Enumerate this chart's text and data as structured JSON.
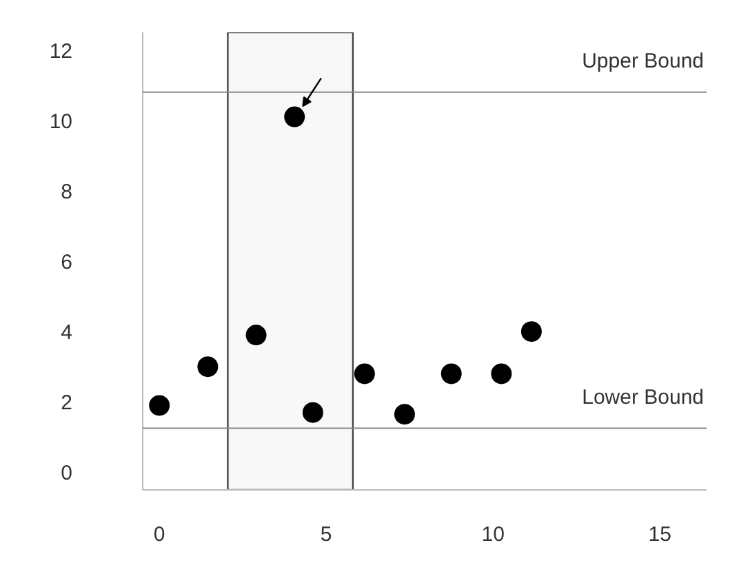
{
  "chart_data": {
    "type": "scatter",
    "x": [
      0,
      1.45,
      2.9,
      4.05,
      4.6,
      6.15,
      7.35,
      8.75,
      10.25,
      11.15
    ],
    "series": [
      {
        "color": "#000000",
        "values": [
          1.9,
          3.0,
          3.9,
          10.1,
          1.7,
          2.8,
          1.65,
          2.8,
          2.8,
          4.0
        ]
      }
    ],
    "xlim": [
      -0.5,
      16.4
    ],
    "ylim": [
      -0.5,
      12.5
    ],
    "xticks": [
      0,
      5,
      10,
      15
    ],
    "yticks": [
      0,
      2,
      4,
      6,
      8,
      10,
      12
    ],
    "ref_lines": [
      {
        "axis": "y",
        "value": 10.8,
        "label": "Upper Bound",
        "color": "#888888"
      },
      {
        "axis": "y",
        "value": 1.25,
        "label": "Lower Bound",
        "color": "#888888"
      }
    ],
    "bands": [
      {
        "axis": "x",
        "from": 2.05,
        "to": 5.8,
        "color": "#444444"
      }
    ],
    "grid": false,
    "marker": "circle"
  }
}
